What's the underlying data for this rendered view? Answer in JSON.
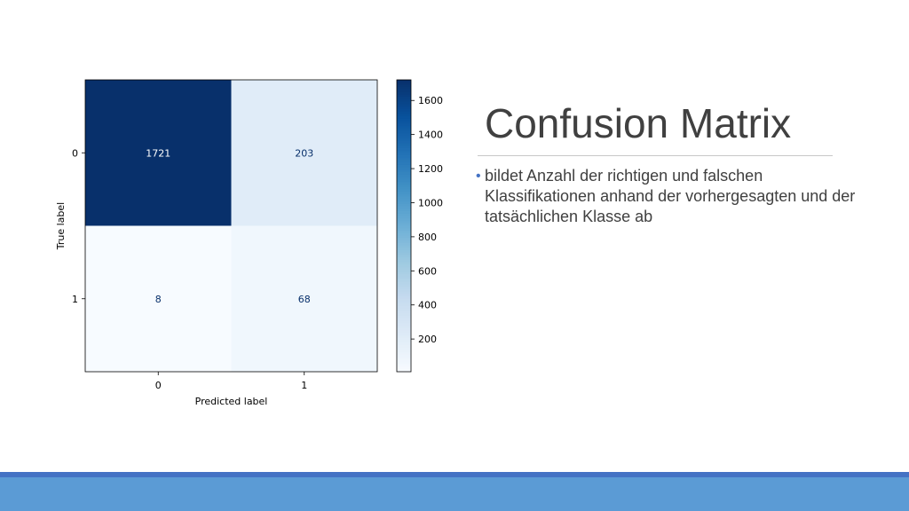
{
  "slide": {
    "title": "Confusion Matrix",
    "bullets": [
      "bildet Anzahl der richtigen und falschen Klassifikationen anhand der vorhergesagten und der tatsächlichen Klasse ab"
    ],
    "bullet_glyph": "•",
    "colors": {
      "title_text": "#404040",
      "bullet_accent": "#4472c4",
      "footer_dark": "#4472c4",
      "footer_band": "#5b9bd5"
    }
  },
  "chart_data": {
    "type": "heatmap",
    "xlabel": "Predicted label",
    "ylabel": "True label",
    "x_categories": [
      "0",
      "1"
    ],
    "y_categories": [
      "0",
      "1"
    ],
    "matrix": [
      [
        1721,
        203
      ],
      [
        8,
        68
      ]
    ],
    "colormap": "Blues",
    "colorbar": {
      "ticks": [
        200,
        400,
        600,
        800,
        1000,
        1200,
        1400,
        1600
      ],
      "range": [
        8,
        1721
      ]
    }
  }
}
